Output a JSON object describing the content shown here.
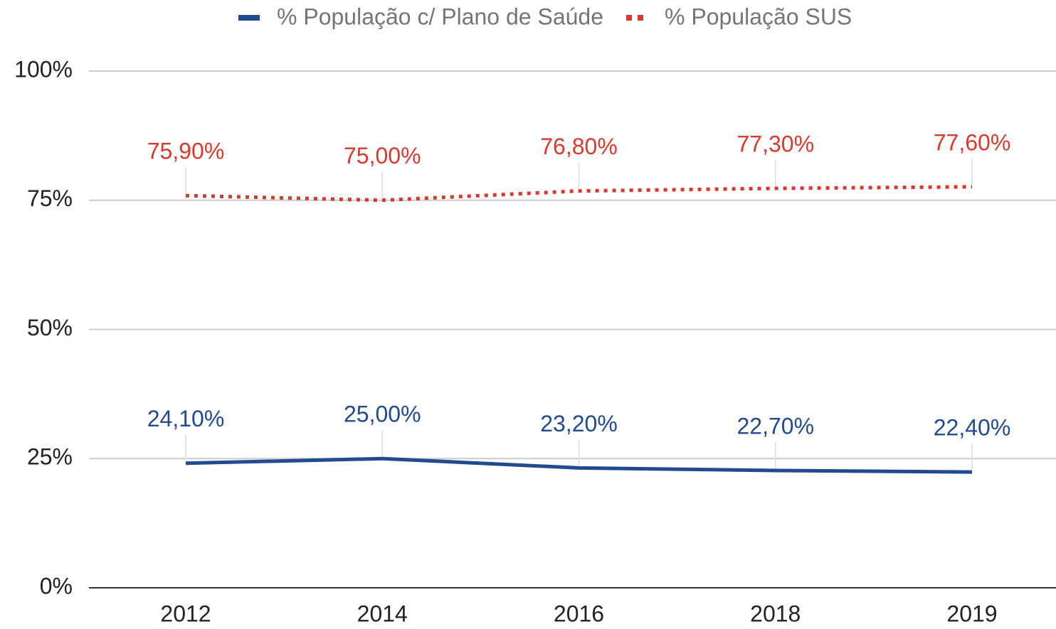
{
  "chart_data": {
    "type": "line",
    "categories": [
      "2012",
      "2014",
      "2016",
      "2018",
      "2019"
    ],
    "series": [
      {
        "name": "% População c/ Plano de Saúde",
        "color": "#224a91",
        "style": "solid",
        "values": [
          24.1,
          25.0,
          23.2,
          22.7,
          22.4
        ],
        "value_labels": [
          "24,10%",
          "25,00%",
          "23,20%",
          "22,70%",
          "22,40%"
        ]
      },
      {
        "name": "% População SUS",
        "color": "#d9392e",
        "style": "dotted",
        "values": [
          75.9,
          75.0,
          76.8,
          77.3,
          77.6
        ],
        "value_labels": [
          "75,90%",
          "75,00%",
          "76,80%",
          "77,30%",
          "77,60%"
        ]
      }
    ],
    "ylim": [
      0,
      100
    ],
    "yticks": [
      {
        "value": 0,
        "label": "0%"
      },
      {
        "value": 25,
        "label": "25%"
      },
      {
        "value": 50,
        "label": "50%"
      },
      {
        "value": 75,
        "label": "75%"
      },
      {
        "value": 100,
        "label": "100%"
      }
    ],
    "grid": true,
    "legend": "top"
  }
}
